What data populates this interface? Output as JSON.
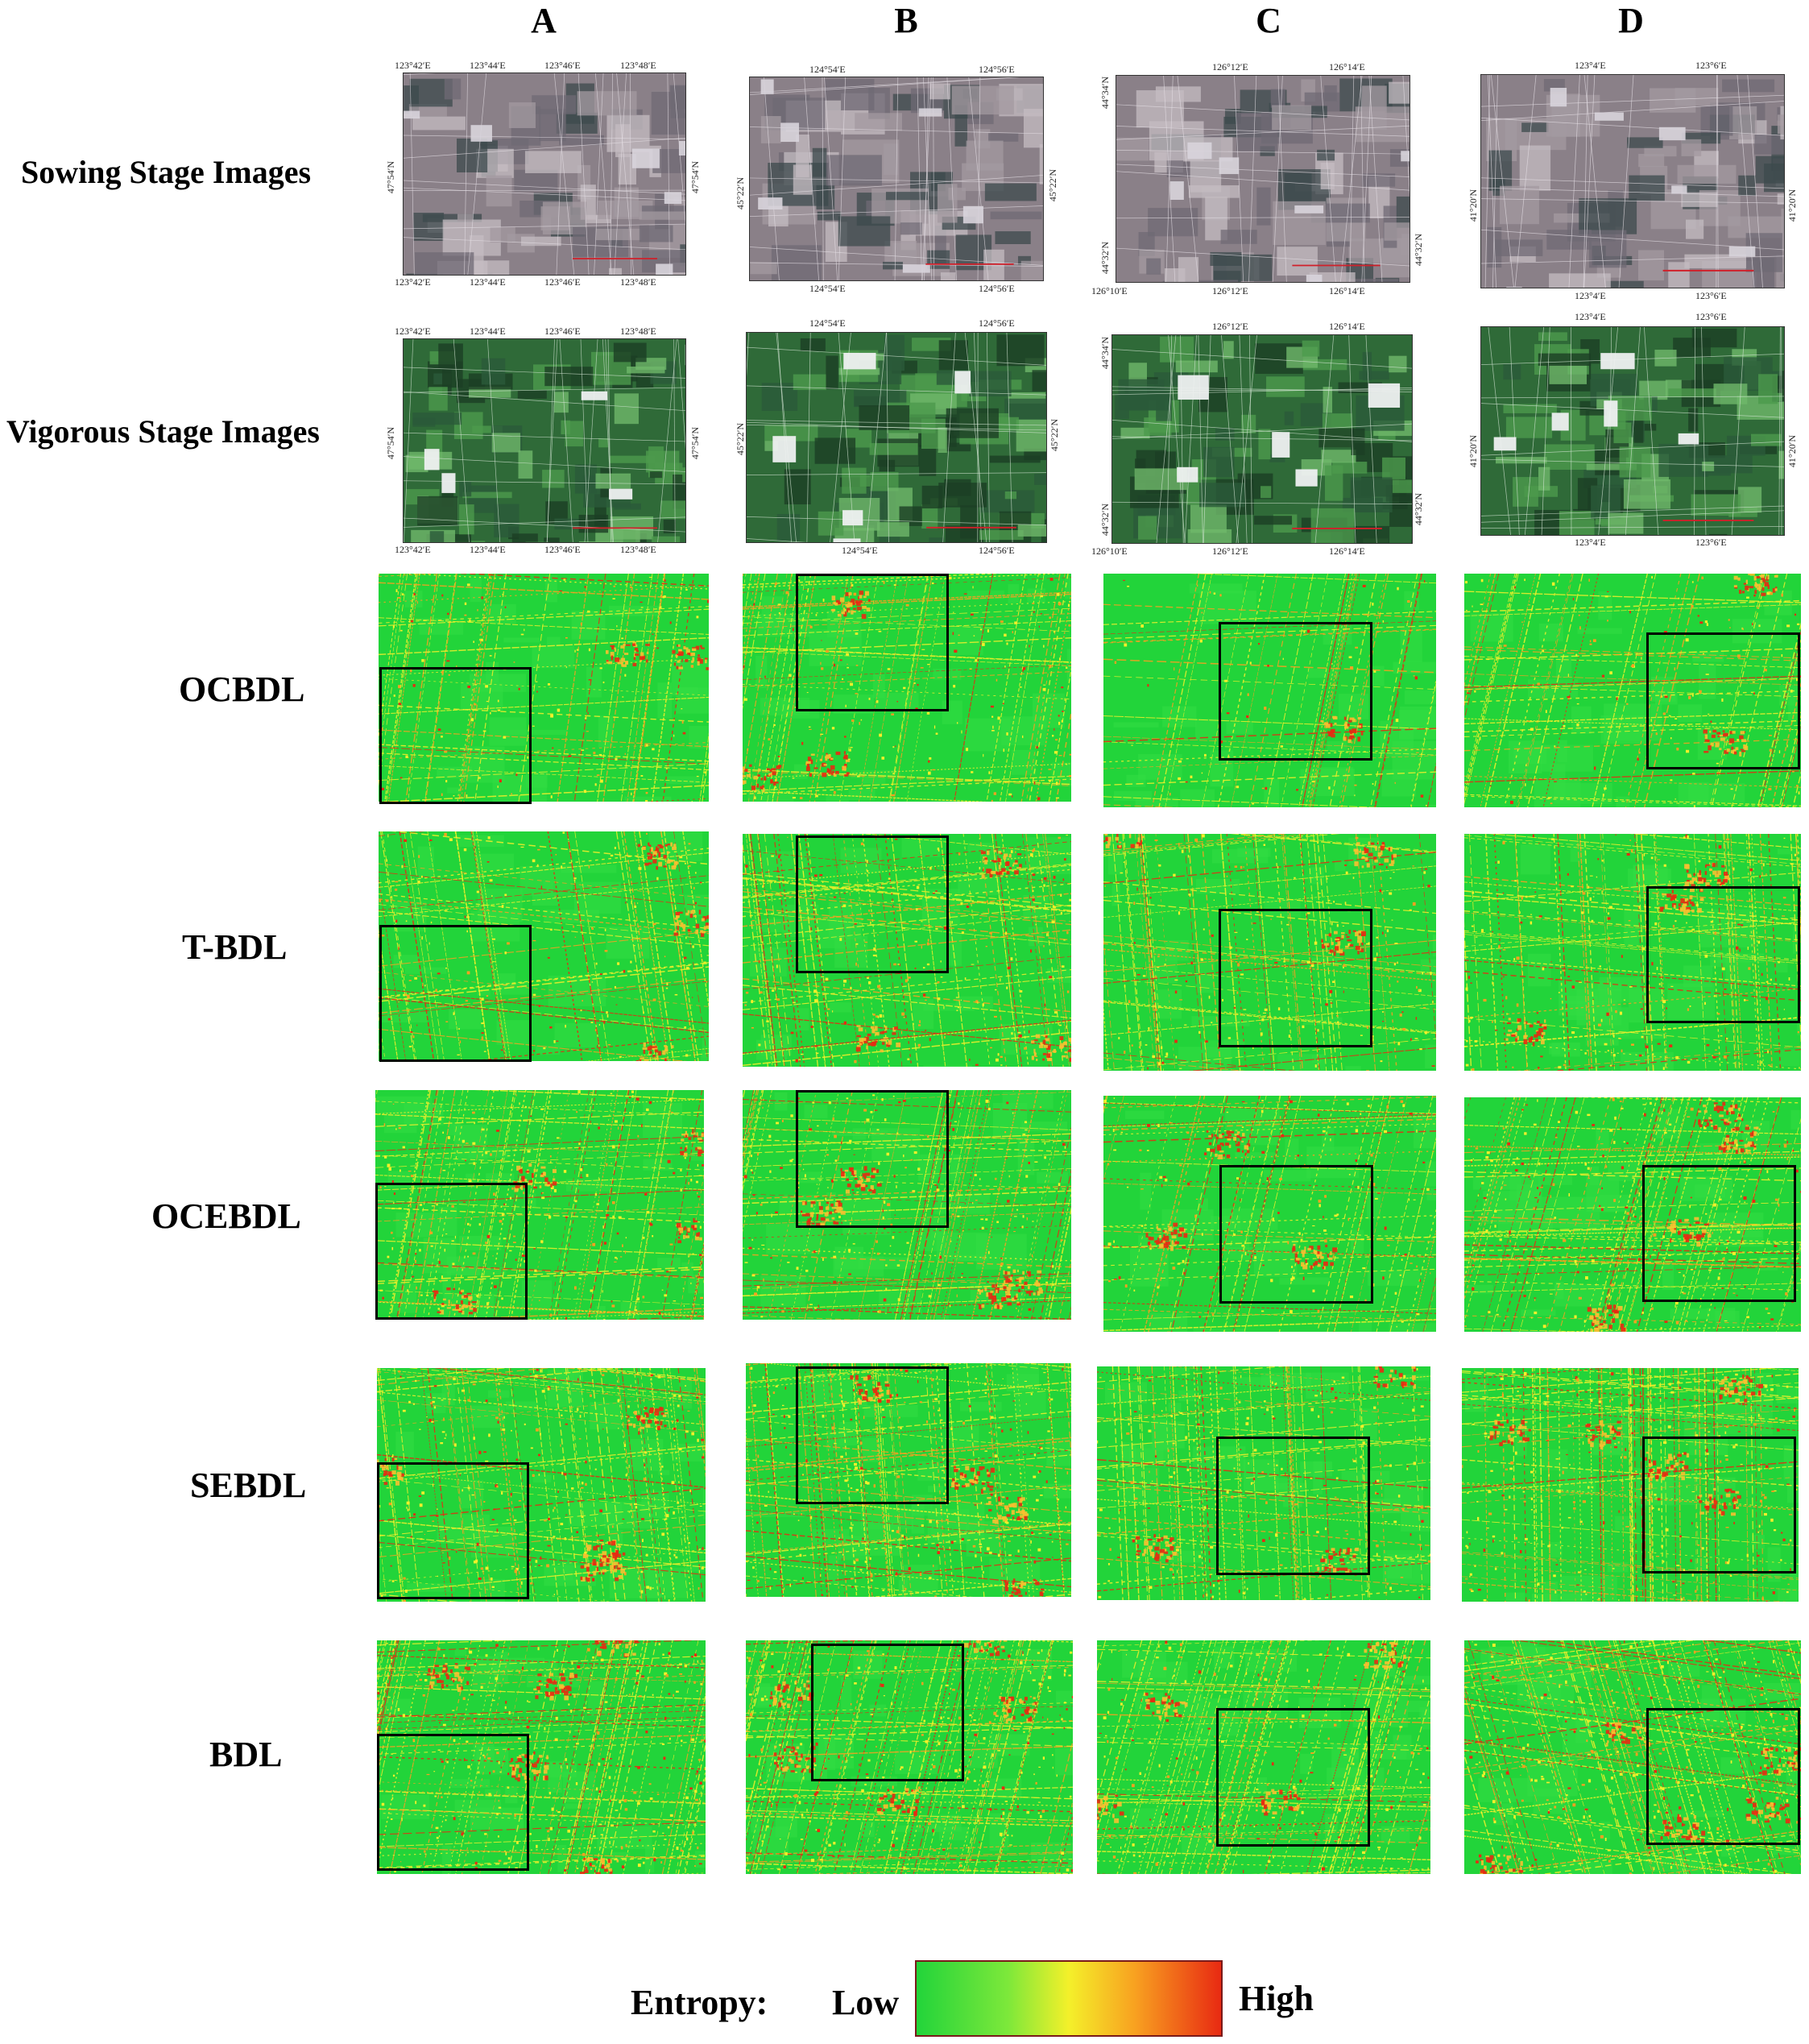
{
  "columns": [
    "A",
    "B",
    "C",
    "D"
  ],
  "rows": {
    "sowing": "Sowing Stage Images",
    "vigorous": "Vigorous Stage Images",
    "methods": [
      "OCBDL",
      "T-BDL",
      "OCEBDL",
      "SEBDL",
      "BDL"
    ]
  },
  "coords": {
    "A": {
      "top": [
        "123°42′E",
        "123°44′E",
        "123°46′E",
        "123°48′E"
      ],
      "bottom": [
        "123°42′E",
        "123°44′E",
        "123°46′E",
        "123°48′E"
      ],
      "lat": "47°54′N"
    },
    "B": {
      "top": [
        "124°54′E",
        "124°56′E"
      ],
      "bottom": [
        "124°54′E",
        "124°56′E"
      ],
      "lat": "45°22′N"
    },
    "C": {
      "top": [
        "126°12′E",
        "126°14′E"
      ],
      "bottom": [
        "126°10′E",
        "126°12′E",
        "126°14′E"
      ],
      "lat": "44°32′N",
      "lat2": "44°34′N"
    },
    "D": {
      "top": [
        "123°4′E",
        "123°6′E"
      ],
      "bottom": [
        "123°4′E",
        "123°6′E"
      ],
      "lat": "41°20′N"
    }
  },
  "legend": {
    "title": "Entropy:",
    "low": "Low",
    "high": "High",
    "colors": [
      "#22d43a",
      "#f4f02a",
      "#e82a12"
    ]
  }
}
